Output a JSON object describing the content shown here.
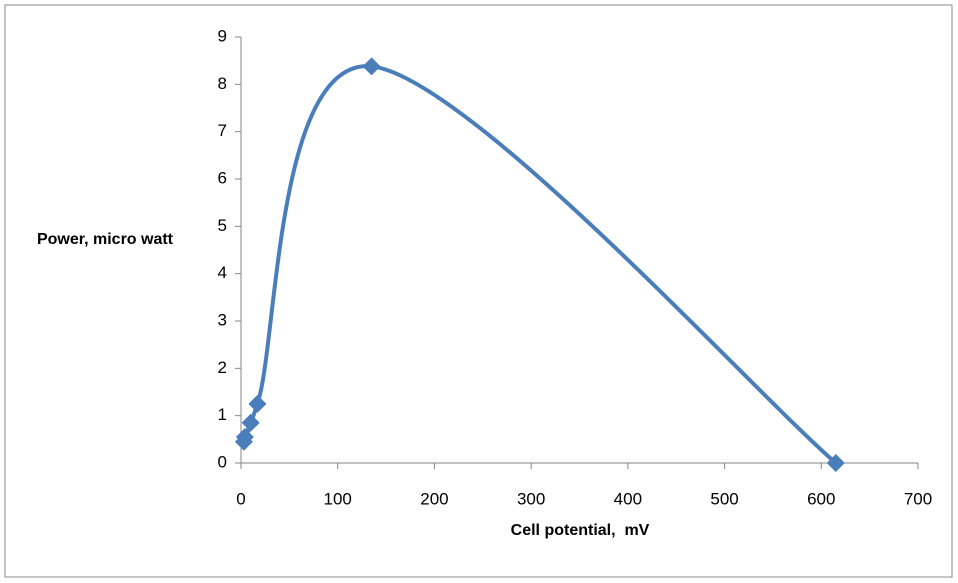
{
  "chart_data": {
    "type": "scatter",
    "line": "smooth",
    "color": "#4a7ebb",
    "x_label": "Cell potential,  mV",
    "y_label": "Power, micro watt",
    "x": [
      3,
      4,
      10,
      17,
      135,
      615
    ],
    "values": [
      0.45,
      0.55,
      0.85,
      1.25,
      8.38,
      0
    ],
    "xlim": [
      0,
      700
    ],
    "xticks": [
      0,
      100,
      200,
      300,
      400,
      500,
      600,
      700
    ],
    "ylim": [
      0,
      9
    ],
    "yticks": [
      0,
      1,
      2,
      3,
      4,
      5,
      6,
      7,
      8,
      9
    ],
    "grid": false
  }
}
